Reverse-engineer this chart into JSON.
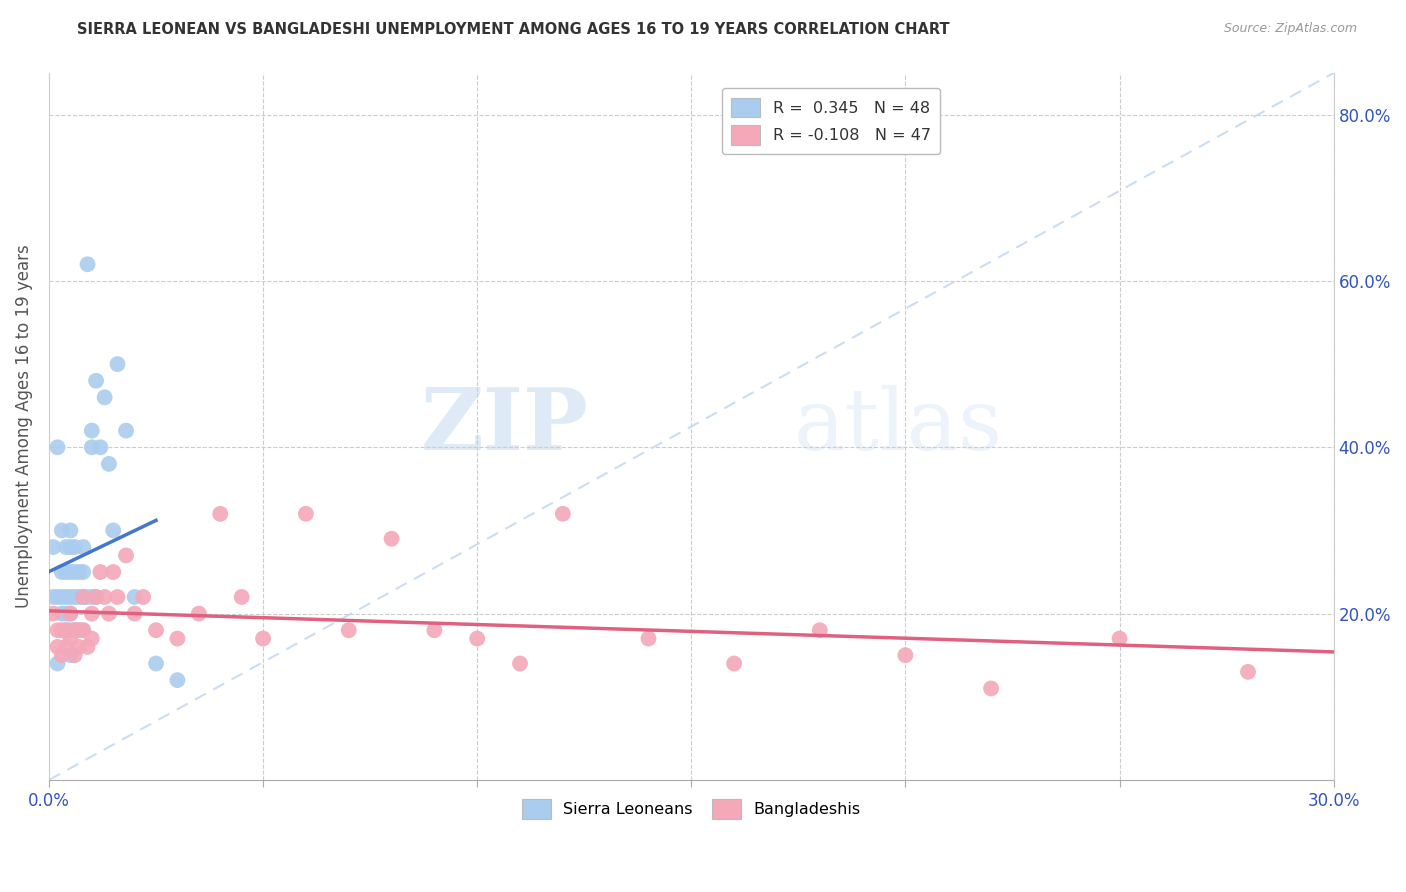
{
  "title": "SIERRA LEONEAN VS BANGLADESHI UNEMPLOYMENT AMONG AGES 16 TO 19 YEARS CORRELATION CHART",
  "source": "Source: ZipAtlas.com",
  "ylabel": "Unemployment Among Ages 16 to 19 years",
  "xlim": [
    0.0,
    0.3
  ],
  "ylim": [
    0.0,
    0.85
  ],
  "sl_r": "0.345",
  "sl_n": "48",
  "bd_r": "-0.108",
  "bd_n": "47",
  "sl_color": "#aaccee",
  "bd_color": "#f4a8b8",
  "sl_line_color": "#4477cc",
  "bd_line_color": "#e06080",
  "diagonal_color": "#c8daf0",
  "watermark_zip": "ZIP",
  "watermark_atlas": "atlas",
  "yticks": [
    0.0,
    0.2,
    0.4,
    0.6,
    0.8
  ],
  "ytick_labels": [
    "",
    "20.0%",
    "40.0%",
    "60.0%",
    "80.0%"
  ],
  "sl_x": [
    0.001,
    0.001,
    0.002,
    0.002,
    0.002,
    0.003,
    0.003,
    0.003,
    0.003,
    0.004,
    0.004,
    0.004,
    0.004,
    0.004,
    0.005,
    0.005,
    0.005,
    0.005,
    0.005,
    0.005,
    0.005,
    0.006,
    0.006,
    0.006,
    0.006,
    0.007,
    0.007,
    0.007,
    0.008,
    0.008,
    0.008,
    0.008,
    0.009,
    0.009,
    0.01,
    0.01,
    0.01,
    0.011,
    0.011,
    0.012,
    0.013,
    0.014,
    0.015,
    0.016,
    0.018,
    0.02,
    0.025,
    0.03
  ],
  "sl_y": [
    0.28,
    0.22,
    0.4,
    0.22,
    0.14,
    0.3,
    0.25,
    0.22,
    0.2,
    0.28,
    0.25,
    0.22,
    0.2,
    0.18,
    0.3,
    0.28,
    0.25,
    0.22,
    0.2,
    0.18,
    0.15,
    0.28,
    0.25,
    0.22,
    0.18,
    0.25,
    0.22,
    0.18,
    0.28,
    0.25,
    0.22,
    0.18,
    0.62,
    0.22,
    0.42,
    0.4,
    0.22,
    0.48,
    0.22,
    0.4,
    0.46,
    0.38,
    0.3,
    0.5,
    0.42,
    0.22,
    0.14,
    0.12
  ],
  "bd_x": [
    0.001,
    0.002,
    0.002,
    0.003,
    0.003,
    0.004,
    0.004,
    0.005,
    0.005,
    0.006,
    0.006,
    0.007,
    0.007,
    0.008,
    0.008,
    0.009,
    0.01,
    0.01,
    0.011,
    0.012,
    0.013,
    0.014,
    0.015,
    0.016,
    0.018,
    0.02,
    0.022,
    0.025,
    0.03,
    0.035,
    0.04,
    0.045,
    0.05,
    0.06,
    0.07,
    0.08,
    0.09,
    0.1,
    0.11,
    0.12,
    0.14,
    0.16,
    0.18,
    0.2,
    0.22,
    0.25,
    0.28
  ],
  "bd_y": [
    0.2,
    0.18,
    0.16,
    0.18,
    0.15,
    0.18,
    0.16,
    0.2,
    0.17,
    0.18,
    0.15,
    0.18,
    0.16,
    0.22,
    0.18,
    0.16,
    0.2,
    0.17,
    0.22,
    0.25,
    0.22,
    0.2,
    0.25,
    0.22,
    0.27,
    0.2,
    0.22,
    0.18,
    0.17,
    0.2,
    0.32,
    0.22,
    0.17,
    0.32,
    0.18,
    0.29,
    0.18,
    0.17,
    0.14,
    0.32,
    0.17,
    0.14,
    0.18,
    0.15,
    0.11,
    0.17,
    0.13
  ]
}
